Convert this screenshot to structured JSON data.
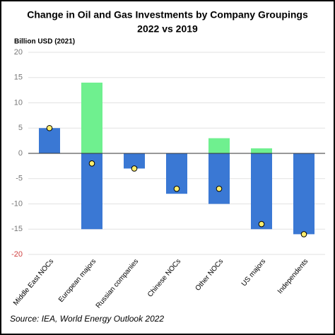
{
  "chart_data": {
    "type": "bar",
    "title": "Change in Oil and Gas Investments by Company Groupings",
    "subtitle": "2022 vs 2019",
    "y_label": "Billion USD (2021)",
    "source": "Source: IEA, World Energy Outlook 2022",
    "categories": [
      "Middle East NOCs",
      "European majors",
      "Russian companies",
      "Chinese NOCs",
      "Other NOCs",
      "US majors",
      "Independents"
    ],
    "series": [
      {
        "color": "#3a78d4",
        "style": "bar",
        "values": [
          5,
          -15,
          -3,
          -8,
          -10,
          -15,
          -16
        ]
      },
      {
        "color": "#6ff08f",
        "style": "bar",
        "values": [
          0,
          14,
          0,
          0,
          3,
          1,
          0
        ]
      },
      {
        "color": "#ffee6e",
        "style": "dot",
        "values": [
          5,
          -2,
          -3,
          -7,
          -7,
          -14,
          -16
        ]
      }
    ],
    "ylim": [
      -20,
      20
    ],
    "yticks": [
      -20,
      -15,
      -10,
      -5,
      0,
      5,
      10,
      15,
      20
    ],
    "grid": true
  }
}
